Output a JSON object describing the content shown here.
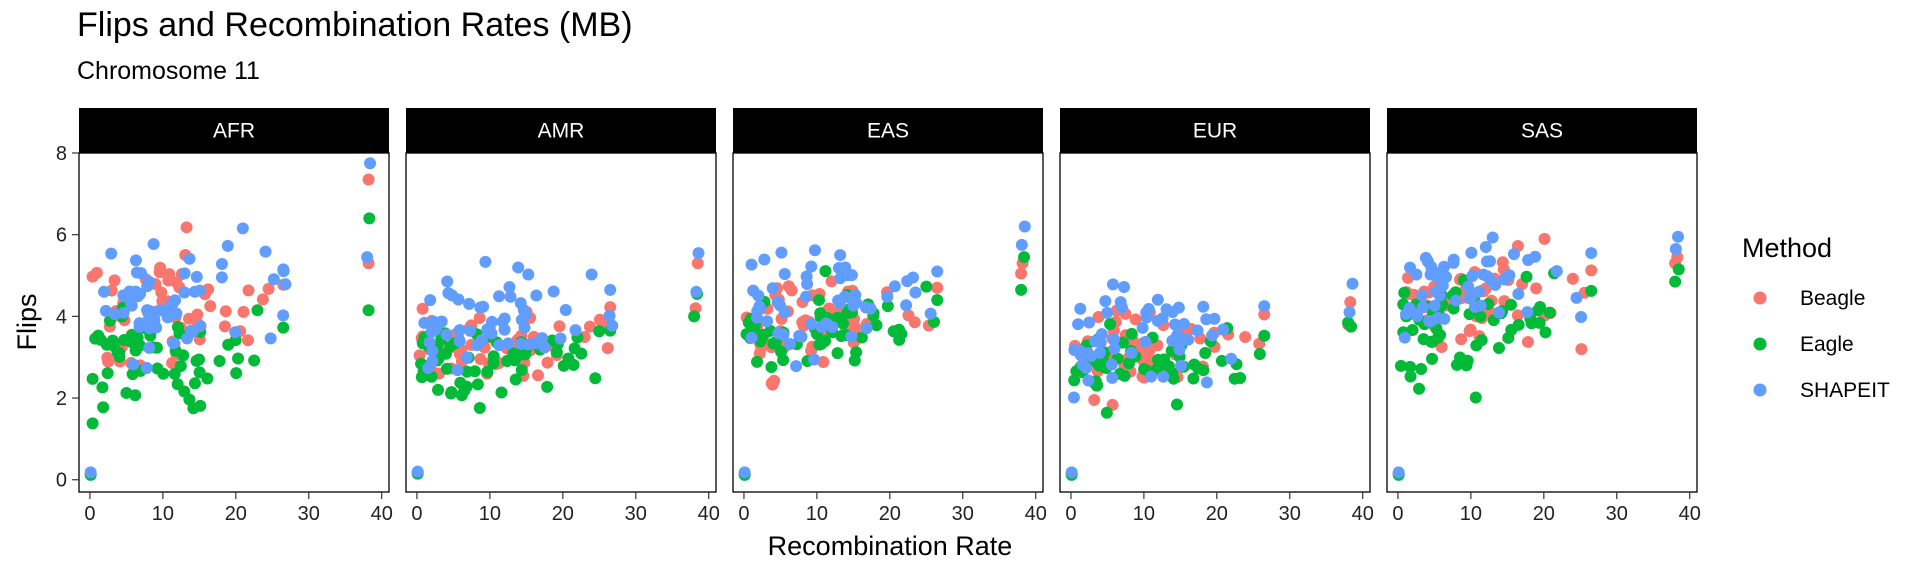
{
  "chart_data": {
    "type": "scatter",
    "title": "Flips and Recombination Rates (MB)",
    "subtitle": "Chromosome 11",
    "xlabel": "Recombination Rate",
    "ylabel": "Flips",
    "xlim": [
      -1.5,
      41
    ],
    "ylim": [
      -0.3,
      8
    ],
    "xticks": [
      0,
      10,
      20,
      30,
      40
    ],
    "yticks": [
      0,
      2,
      4,
      6,
      8
    ],
    "legend": {
      "title": "Method",
      "position": "right",
      "entries": [
        "Beagle",
        "Eagle",
        "SHAPEIT"
      ]
    },
    "colors": {
      "Beagle": "#F8766D",
      "Eagle": "#00BA38",
      "SHAPEIT": "#619CFF"
    },
    "facets": [
      "AFR",
      "AMR",
      "EAS",
      "EUR",
      "SAS"
    ],
    "facet_params": {
      "AFR": {
        "Beagle": [
          0.15,
          3.6,
          4.35,
          0.7,
          38.2,
          7.35,
          38.2,
          5.3
        ],
        "Eagle": [
          0.12,
          2.75,
          3.1,
          0.65,
          38.3,
          6.4,
          38.2,
          4.15
        ],
        "SHAPEIT": [
          0.18,
          3.9,
          4.8,
          0.75,
          38.4,
          7.75,
          38.0,
          5.45
        ]
      },
      "AMR": {
        "Beagle": [
          0.18,
          3.25,
          3.6,
          0.5,
          38.5,
          5.3,
          38.2,
          4.2
        ],
        "Eagle": [
          0.15,
          2.7,
          3.0,
          0.45,
          38.4,
          4.55,
          38.0,
          4.0
        ],
        "SHAPEIT": [
          0.2,
          3.7,
          4.0,
          0.55,
          38.6,
          5.55,
          38.3,
          4.6
        ]
      },
      "EAS": {
        "Beagle": [
          0.15,
          3.7,
          4.1,
          0.55,
          38.2,
          5.3,
          38.0,
          5.05
        ],
        "Eagle": [
          0.12,
          3.4,
          3.8,
          0.5,
          38.4,
          5.45,
          38.0,
          4.65
        ],
        "SHAPEIT": [
          0.18,
          4.1,
          4.5,
          0.6,
          38.5,
          6.2,
          38.1,
          5.75
        ]
      },
      "EUR": {
        "Beagle": [
          0.15,
          3.1,
          3.4,
          0.45,
          38.3,
          4.35,
          38.0,
          3.8
        ],
        "Eagle": [
          0.12,
          2.6,
          2.85,
          0.4,
          38.4,
          3.75,
          38.0,
          3.85
        ],
        "SHAPEIT": [
          0.18,
          3.3,
          3.6,
          0.5,
          38.6,
          4.8,
          38.2,
          4.1
        ]
      },
      "SAS": {
        "Beagle": [
          0.15,
          4.1,
          4.55,
          0.6,
          38.3,
          5.45,
          38.0,
          5.3
        ],
        "Eagle": [
          0.12,
          3.6,
          4.05,
          0.55,
          38.5,
          5.15,
          38.0,
          4.85
        ],
        "SHAPEIT": [
          0.18,
          4.5,
          5.0,
          0.65,
          38.4,
          5.95,
          38.1,
          5.65
        ]
      }
    }
  }
}
